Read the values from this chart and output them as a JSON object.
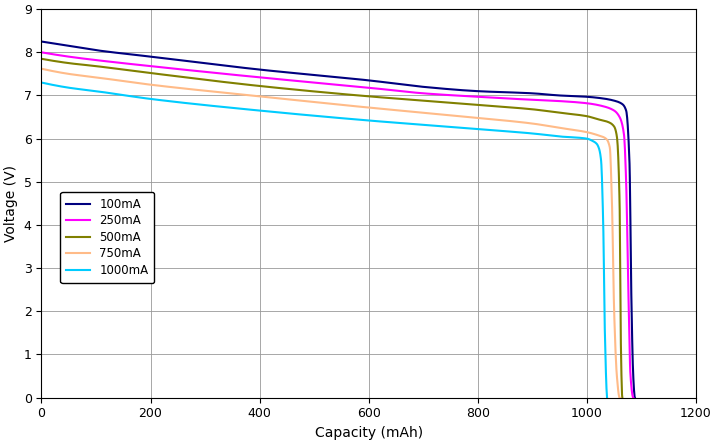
{
  "title": "",
  "xlabel": "Capacity (mAh)",
  "ylabel": "Voltage (V)",
  "xlim": [
    0,
    1200
  ],
  "ylim": [
    0,
    9
  ],
  "xticks": [
    0,
    200,
    400,
    600,
    800,
    1000,
    1200
  ],
  "yticks": [
    0,
    1,
    2,
    3,
    4,
    5,
    6,
    7,
    8,
    9
  ],
  "background_color": "#ffffff",
  "grid_color": "#999999",
  "series": [
    {
      "label": "100mA",
      "color": "#00007F",
      "pts": [
        [
          0,
          8.25
        ],
        [
          50,
          8.15
        ],
        [
          100,
          8.05
        ],
        [
          200,
          7.9
        ],
        [
          400,
          7.6
        ],
        [
          600,
          7.35
        ],
        [
          700,
          7.2
        ],
        [
          800,
          7.1
        ],
        [
          900,
          7.05
        ],
        [
          950,
          7.0
        ],
        [
          1000,
          6.97
        ],
        [
          1030,
          6.93
        ],
        [
          1050,
          6.88
        ],
        [
          1065,
          6.8
        ],
        [
          1072,
          6.65
        ],
        [
          1078,
          5.5
        ],
        [
          1082,
          2.0
        ],
        [
          1085,
          0.5
        ],
        [
          1088,
          0.0
        ]
      ]
    },
    {
      "label": "250mA",
      "color": "#FF00FF",
      "pts": [
        [
          0,
          8.0
        ],
        [
          50,
          7.9
        ],
        [
          100,
          7.82
        ],
        [
          200,
          7.68
        ],
        [
          400,
          7.42
        ],
        [
          600,
          7.18
        ],
        [
          700,
          7.05
        ],
        [
          800,
          6.97
        ],
        [
          900,
          6.9
        ],
        [
          950,
          6.87
        ],
        [
          1000,
          6.82
        ],
        [
          1030,
          6.75
        ],
        [
          1050,
          6.65
        ],
        [
          1060,
          6.5
        ],
        [
          1068,
          6.1
        ],
        [
          1072,
          5.0
        ],
        [
          1076,
          2.5
        ],
        [
          1080,
          0.5
        ],
        [
          1085,
          0.0
        ]
      ]
    },
    {
      "label": "500mA",
      "color": "#808000",
      "pts": [
        [
          0,
          7.85
        ],
        [
          50,
          7.75
        ],
        [
          100,
          7.68
        ],
        [
          200,
          7.52
        ],
        [
          400,
          7.22
        ],
        [
          600,
          6.98
        ],
        [
          700,
          6.88
        ],
        [
          800,
          6.78
        ],
        [
          900,
          6.68
        ],
        [
          950,
          6.6
        ],
        [
          1000,
          6.52
        ],
        [
          1020,
          6.45
        ],
        [
          1040,
          6.38
        ],
        [
          1050,
          6.28
        ],
        [
          1055,
          6.05
        ],
        [
          1060,
          4.5
        ],
        [
          1062,
          1.5
        ],
        [
          1065,
          0.0
        ]
      ]
    },
    {
      "label": "750mA",
      "color": "#FFBB88",
      "pts": [
        [
          0,
          7.62
        ],
        [
          50,
          7.5
        ],
        [
          100,
          7.42
        ],
        [
          200,
          7.25
        ],
        [
          400,
          6.98
        ],
        [
          600,
          6.72
        ],
        [
          700,
          6.6
        ],
        [
          800,
          6.48
        ],
        [
          900,
          6.35
        ],
        [
          950,
          6.25
        ],
        [
          1000,
          6.15
        ],
        [
          1020,
          6.08
        ],
        [
          1035,
          6.0
        ],
        [
          1042,
          5.8
        ],
        [
          1046,
          4.5
        ],
        [
          1050,
          2.0
        ],
        [
          1055,
          0.5
        ],
        [
          1060,
          0.0
        ]
      ]
    },
    {
      "label": "1000mA",
      "color": "#00CCFF",
      "pts": [
        [
          0,
          7.3
        ],
        [
          50,
          7.18
        ],
        [
          100,
          7.1
        ],
        [
          200,
          6.92
        ],
        [
          400,
          6.65
        ],
        [
          600,
          6.42
        ],
        [
          700,
          6.32
        ],
        [
          800,
          6.22
        ],
        [
          900,
          6.12
        ],
        [
          950,
          6.05
        ],
        [
          1000,
          6.0
        ],
        [
          1010,
          5.95
        ],
        [
          1018,
          5.88
        ],
        [
          1022,
          5.78
        ],
        [
          1026,
          5.5
        ],
        [
          1030,
          4.0
        ],
        [
          1033,
          1.5
        ],
        [
          1037,
          0.0
        ]
      ]
    }
  ]
}
